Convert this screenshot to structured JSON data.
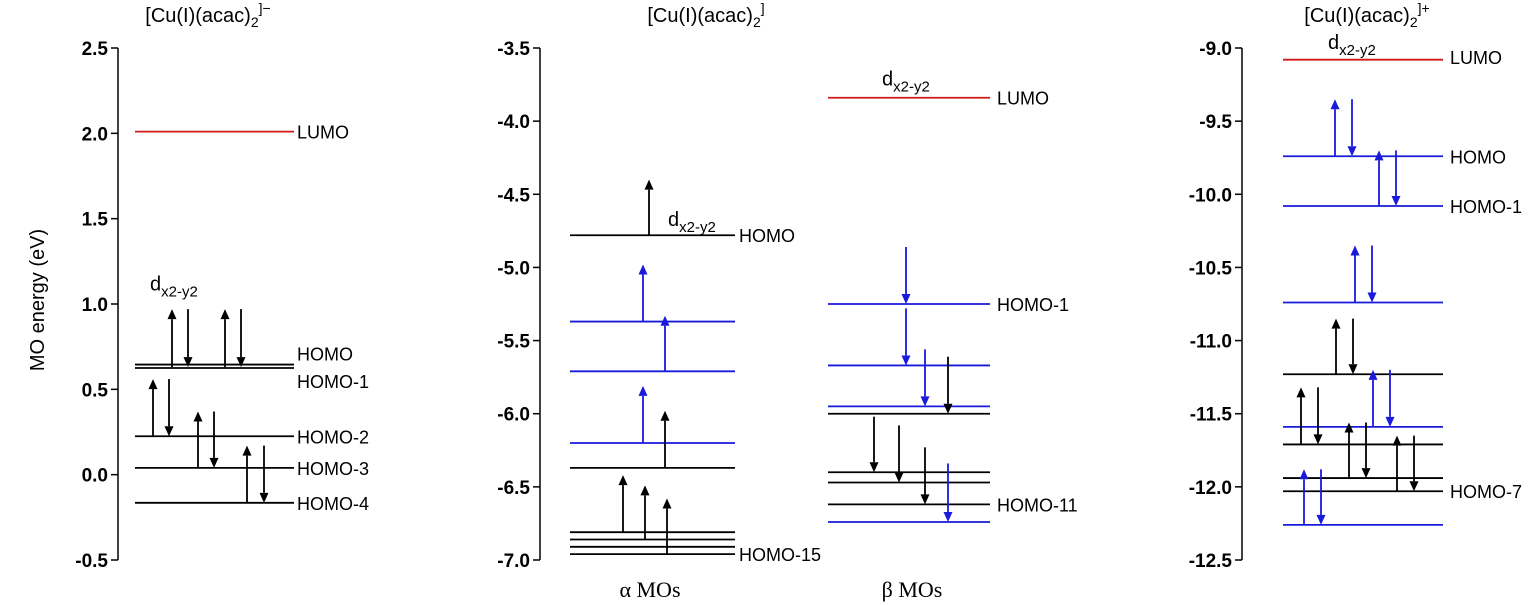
{
  "colors": {
    "black": "#000000",
    "blue": "#1a1adc",
    "red": "#d01818"
  },
  "y_axis_label": "MO energy (eV)",
  "panels": [
    {
      "title_main": "[Cu(I)(acac)",
      "title_sub": "2",
      "title_sup": "]−",
      "ylim": [
        -0.5,
        2.5
      ],
      "ticks": [
        "2.5",
        "2.0",
        "1.5",
        "1.0",
        "0.5",
        "0.0",
        "-0.5"
      ],
      "tick_values": [
        2.5,
        2.0,
        1.5,
        1.0,
        0.5,
        0.0,
        -0.5
      ],
      "levels": [
        {
          "e": 2.01,
          "color": "red",
          "x1": 135,
          "x2": 294
        },
        {
          "e": 0.645,
          "color": "black",
          "x1": 135,
          "x2": 294
        },
        {
          "e": 0.625,
          "color": "black",
          "x1": 135,
          "x2": 294
        },
        {
          "e": 0.225,
          "color": "black",
          "x1": 135,
          "x2": 294
        },
        {
          "e": 0.04,
          "color": "black",
          "x1": 135,
          "x2": 294
        },
        {
          "e": -0.165,
          "color": "black",
          "x1": 135,
          "x2": 294
        }
      ],
      "arrows": [
        {
          "x": 172,
          "from": 0.63,
          "to": 0.97,
          "color": "black"
        },
        {
          "x": 188,
          "from": 0.97,
          "to": 0.63,
          "color": "black"
        },
        {
          "x": 225,
          "from": 0.63,
          "to": 0.97,
          "color": "black"
        },
        {
          "x": 241,
          "from": 0.97,
          "to": 0.63,
          "color": "black"
        },
        {
          "x": 153,
          "from": 0.225,
          "to": 0.56,
          "color": "black"
        },
        {
          "x": 169,
          "from": 0.56,
          "to": 0.225,
          "color": "black"
        },
        {
          "x": 198,
          "from": 0.04,
          "to": 0.37,
          "color": "black"
        },
        {
          "x": 214,
          "from": 0.37,
          "to": 0.04,
          "color": "black"
        },
        {
          "x": 247,
          "from": -0.165,
          "to": 0.17,
          "color": "black"
        },
        {
          "x": 264,
          "from": 0.17,
          "to": -0.165,
          "color": "black"
        }
      ],
      "labels": [
        {
          "text": "LUMO",
          "e": 2.01
        },
        {
          "text": "HOMO",
          "e": 0.71
        },
        {
          "text": "HOMO-1",
          "e": 0.55
        },
        {
          "text": "HOMO-2",
          "e": 0.225
        },
        {
          "text": "HOMO-3",
          "e": 0.04
        },
        {
          "text": "HOMO-4",
          "e": -0.165
        }
      ],
      "d_labels": [
        {
          "main": "d",
          "sub": "x2-y2",
          "e": 1.12
        }
      ]
    },
    {
      "title_main": "[Cu(I)(acac)",
      "title_sub": "2",
      "title_sup": "]",
      "ylim": [
        -7.0,
        -3.5
      ],
      "ticks": [
        "-3.5",
        "-4.0",
        "-4.5",
        "-5.0",
        "-5.5",
        "-6.0",
        "-6.5",
        "-7.0"
      ],
      "tick_values": [
        -3.5,
        -4.0,
        -4.5,
        -5.0,
        -5.5,
        -6.0,
        -6.5,
        -7.0
      ],
      "levels": [
        {
          "e": -4.78,
          "color": "black",
          "x1": 570,
          "x2": 735
        },
        {
          "e": -5.37,
          "color": "blue",
          "x1": 570,
          "x2": 735
        },
        {
          "e": -5.71,
          "color": "blue",
          "x1": 570,
          "x2": 735
        },
        {
          "e": -6.2,
          "color": "blue",
          "x1": 570,
          "x2": 735
        },
        {
          "e": -6.37,
          "color": "black",
          "x1": 570,
          "x2": 735
        },
        {
          "e": -6.81,
          "color": "black",
          "x1": 570,
          "x2": 735
        },
        {
          "e": -6.86,
          "color": "black",
          "x1": 570,
          "x2": 735
        },
        {
          "e": -6.91,
          "color": "black",
          "x1": 570,
          "x2": 735
        },
        {
          "e": -6.96,
          "color": "black",
          "x1": 570,
          "x2": 735
        },
        {
          "e": -3.84,
          "color": "red",
          "x1": 828,
          "x2": 990
        },
        {
          "e": -5.25,
          "color": "blue",
          "x1": 828,
          "x2": 990
        },
        {
          "e": -5.67,
          "color": "blue",
          "x1": 828,
          "x2": 990
        },
        {
          "e": -5.95,
          "color": "blue",
          "x1": 828,
          "x2": 990
        },
        {
          "e": -6.0,
          "color": "black",
          "x1": 828,
          "x2": 990
        },
        {
          "e": -6.4,
          "color": "black",
          "x1": 828,
          "x2": 990
        },
        {
          "e": -6.47,
          "color": "black",
          "x1": 828,
          "x2": 990
        },
        {
          "e": -6.62,
          "color": "black",
          "x1": 828,
          "x2": 990
        },
        {
          "e": -6.74,
          "color": "blue",
          "x1": 828,
          "x2": 990
        }
      ],
      "arrows": [
        {
          "x": 649,
          "from": -4.78,
          "to": -4.4,
          "color": "black"
        },
        {
          "x": 643,
          "from": -5.37,
          "to": -4.98,
          "color": "blue"
        },
        {
          "x": 665,
          "from": -5.71,
          "to": -5.33,
          "color": "blue"
        },
        {
          "x": 643,
          "from": -6.2,
          "to": -5.81,
          "color": "blue"
        },
        {
          "x": 665,
          "from": -6.37,
          "to": -5.98,
          "color": "black"
        },
        {
          "x": 623,
          "from": -6.81,
          "to": -6.42,
          "color": "black"
        },
        {
          "x": 645,
          "from": -6.86,
          "to": -6.49,
          "color": "black"
        },
        {
          "x": 667,
          "from": -6.96,
          "to": -6.58,
          "color": "black"
        },
        {
          "x": 906,
          "from": -4.86,
          "to": -5.25,
          "color": "blue"
        },
        {
          "x": 906,
          "from": -5.28,
          "to": -5.67,
          "color": "blue"
        },
        {
          "x": 925,
          "from": -5.56,
          "to": -5.95,
          "color": "blue"
        },
        {
          "x": 948,
          "from": -5.61,
          "to": -6.0,
          "color": "black"
        },
        {
          "x": 874,
          "from": -6.02,
          "to": -6.4,
          "color": "black"
        },
        {
          "x": 899,
          "from": -6.08,
          "to": -6.47,
          "color": "black"
        },
        {
          "x": 925,
          "from": -6.23,
          "to": -6.62,
          "color": "black"
        },
        {
          "x": 948,
          "from": -6.34,
          "to": -6.74,
          "color": "blue"
        }
      ],
      "labels": [
        {
          "text": "HOMO",
          "e": -4.78
        },
        {
          "text": "HOMO-15",
          "e": -6.96
        },
        {
          "text": "LUMO",
          "e": -3.84
        },
        {
          "text": "HOMO-1",
          "e": -5.25
        },
        {
          "text": "HOMO-11",
          "e": -6.62
        }
      ],
      "d_labels": [
        {
          "main": "d",
          "sub": "x2-y2",
          "e": -4.67
        },
        {
          "main": "d",
          "sub": "x2-y2",
          "e": -3.71
        }
      ],
      "col_heads": [
        "α MOs",
        "β MOs"
      ]
    },
    {
      "title_main": "[Cu(I)(acac)",
      "title_sub": "2",
      "title_sup": "]+",
      "ylim": [
        -12.5,
        -9.0
      ],
      "ticks": [
        "-9.0",
        "-9.5",
        "-10.0",
        "-10.5",
        "-11.0",
        "-11.5",
        "-12.0",
        "-12.5"
      ],
      "tick_values": [
        -9.0,
        -9.5,
        -10.0,
        -10.5,
        -11.0,
        -11.5,
        -12.0,
        -12.5
      ],
      "levels": [
        {
          "e": -9.08,
          "color": "red",
          "x1": 1283,
          "x2": 1443
        },
        {
          "e": -9.74,
          "color": "blue",
          "x1": 1283,
          "x2": 1443
        },
        {
          "e": -10.08,
          "color": "blue",
          "x1": 1283,
          "x2": 1443
        },
        {
          "e": -10.74,
          "color": "blue",
          "x1": 1283,
          "x2": 1443
        },
        {
          "e": -11.23,
          "color": "black",
          "x1": 1283,
          "x2": 1443
        },
        {
          "e": -11.59,
          "color": "blue",
          "x1": 1283,
          "x2": 1443
        },
        {
          "e": -11.71,
          "color": "black",
          "x1": 1283,
          "x2": 1443
        },
        {
          "e": -11.94,
          "color": "black",
          "x1": 1283,
          "x2": 1443
        },
        {
          "e": -12.03,
          "color": "black",
          "x1": 1283,
          "x2": 1443
        },
        {
          "e": -12.26,
          "color": "blue",
          "x1": 1283,
          "x2": 1443
        }
      ],
      "arrows": [
        {
          "x": 1335,
          "from": -9.74,
          "to": -9.35,
          "color": "blue"
        },
        {
          "x": 1352,
          "from": -9.35,
          "to": -9.74,
          "color": "blue"
        },
        {
          "x": 1379,
          "from": -10.08,
          "to": -9.7,
          "color": "blue"
        },
        {
          "x": 1396,
          "from": -9.7,
          "to": -10.08,
          "color": "blue"
        },
        {
          "x": 1355,
          "from": -10.74,
          "to": -10.35,
          "color": "blue"
        },
        {
          "x": 1372,
          "from": -10.35,
          "to": -10.74,
          "color": "blue"
        },
        {
          "x": 1336,
          "from": -11.23,
          "to": -10.85,
          "color": "black"
        },
        {
          "x": 1353,
          "from": -10.85,
          "to": -11.23,
          "color": "black"
        },
        {
          "x": 1373,
          "from": -11.59,
          "to": -11.2,
          "color": "blue"
        },
        {
          "x": 1390,
          "from": -11.2,
          "to": -11.59,
          "color": "blue"
        },
        {
          "x": 1301,
          "from": -11.71,
          "to": -11.32,
          "color": "black"
        },
        {
          "x": 1318,
          "from": -11.32,
          "to": -11.71,
          "color": "black"
        },
        {
          "x": 1349,
          "from": -11.94,
          "to": -11.56,
          "color": "black"
        },
        {
          "x": 1366,
          "from": -11.56,
          "to": -11.94,
          "color": "black"
        },
        {
          "x": 1397,
          "from": -12.03,
          "to": -11.65,
          "color": "black"
        },
        {
          "x": 1414,
          "from": -11.65,
          "to": -12.03,
          "color": "black"
        },
        {
          "x": 1304,
          "from": -12.26,
          "to": -11.88,
          "color": "blue"
        },
        {
          "x": 1321,
          "from": -11.88,
          "to": -12.26,
          "color": "blue"
        }
      ],
      "labels": [
        {
          "text": "LUMO",
          "e": -9.06
        },
        {
          "text": "HOMO",
          "e": -9.74
        },
        {
          "text": "HOMO-1",
          "e": -10.08
        },
        {
          "text": "HOMO-7",
          "e": -12.03
        }
      ],
      "d_labels": [
        {
          "main": "d",
          "sub": "x2-y2",
          "e": -8.96
        }
      ]
    }
  ]
}
